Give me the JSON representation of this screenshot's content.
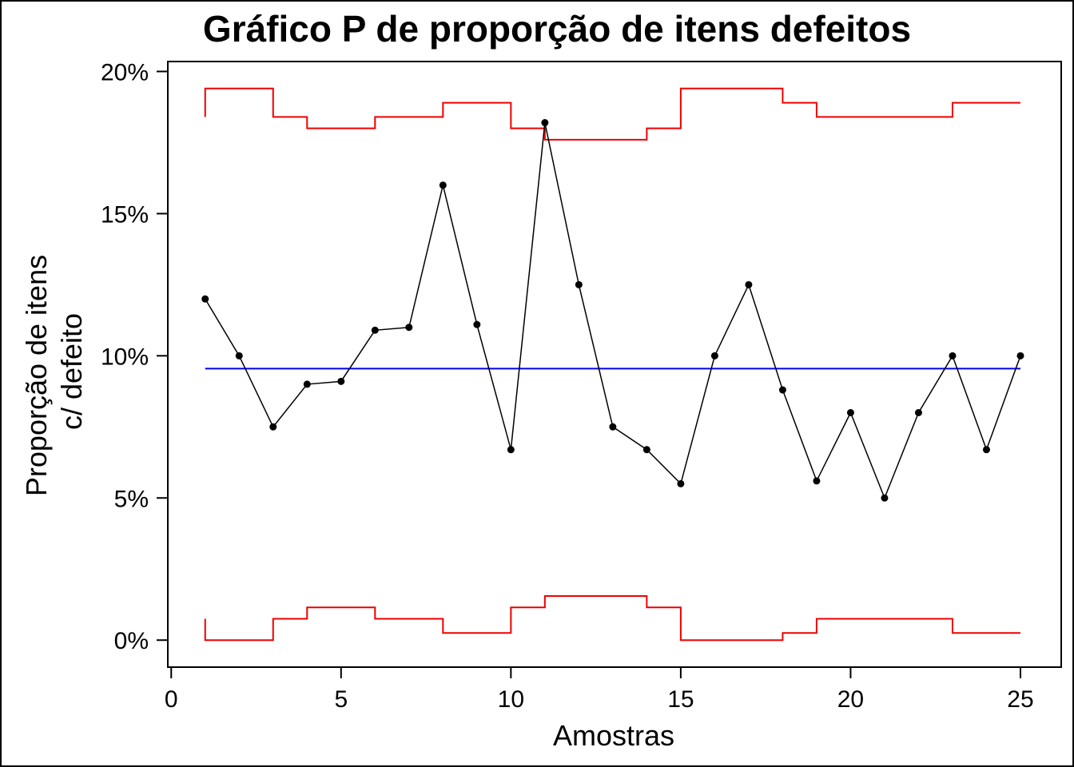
{
  "chart_data": {
    "type": "line",
    "title": "Gráfico P de proporção de itens defeitos",
    "xlabel": "Amostras",
    "ylabel": [
      "Proporção de itens",
      "c/ defeito"
    ],
    "xlim": [
      -0.1,
      26.2
    ],
    "ylim": [
      -0.0095,
      0.2035
    ],
    "x_ticks": [
      0,
      5,
      10,
      15,
      20,
      25
    ],
    "x_tick_labels": [
      "0",
      "5",
      "10",
      "15",
      "20",
      "25"
    ],
    "y_ticks": [
      0,
      0.05,
      0.1,
      0.15,
      0.2
    ],
    "y_tick_labels": [
      "0%",
      "5%",
      "10%",
      "15%",
      "20%"
    ],
    "grid": false,
    "x": [
      1,
      2,
      3,
      4,
      5,
      6,
      7,
      8,
      9,
      10,
      11,
      12,
      13,
      14,
      15,
      16,
      17,
      18,
      19,
      20,
      21,
      22,
      23,
      24,
      25
    ],
    "series": [
      {
        "values": [
          0.12,
          0.1,
          0.075,
          0.09,
          0.091,
          0.109,
          0.11,
          0.16,
          0.111,
          0.067,
          0.182,
          0.125,
          0.075,
          0.067,
          0.055,
          0.1,
          0.125,
          0.088,
          0.056,
          0.08,
          0.05,
          0.08,
          0.1,
          0.067,
          0.1
        ],
        "color": "#000000",
        "markers": true
      }
    ],
    "center_line": {
      "value": 0.0955,
      "color": "#0000ee"
    },
    "ucl": {
      "color": "#ee0000",
      "values": [
        0.194,
        0.194,
        0.184,
        0.18,
        0.18,
        0.184,
        0.184,
        0.189,
        0.189,
        0.18,
        0.176,
        0.176,
        0.176,
        0.18,
        0.194,
        0.194,
        0.194,
        0.189,
        0.184,
        0.184,
        0.184,
        0.184,
        0.189,
        0.189,
        0.189
      ],
      "start_value": 0.184
    },
    "lcl": {
      "color": "#ee0000",
      "values": [
        0.0,
        0.0,
        0.0075,
        0.0115,
        0.0115,
        0.0075,
        0.0075,
        0.0025,
        0.0025,
        0.0115,
        0.0155,
        0.0155,
        0.0155,
        0.0115,
        0.0,
        0.0,
        0.0,
        0.0025,
        0.0075,
        0.0075,
        0.0075,
        0.0075,
        0.0025,
        0.0025,
        0.0025
      ],
      "start_value": 0.0075
    }
  }
}
